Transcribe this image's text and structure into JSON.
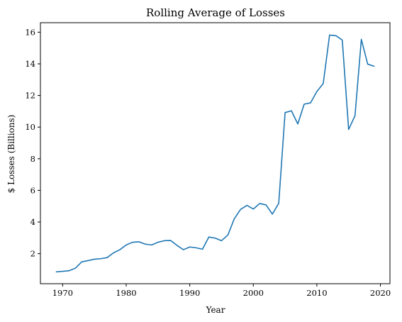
{
  "chart_data": {
    "type": "line",
    "title": "Rolling Average of Losses",
    "xlabel": "Year",
    "ylabel": "$ Losses (Billions)",
    "xlim": [
      1966.5,
      2021.5
    ],
    "ylim": [
      0.1,
      16.6
    ],
    "xticks": [
      1970,
      1980,
      1990,
      2000,
      2010,
      2020
    ],
    "yticks": [
      2,
      4,
      6,
      8,
      10,
      12,
      14,
      16
    ],
    "grid": false,
    "line_color": "#1f77b4",
    "series": [
      {
        "x": [
          1969,
          1970,
          1971,
          1972,
          1973,
          1974,
          1975,
          1976,
          1977,
          1978,
          1979,
          1980,
          1981,
          1982,
          1983,
          1984,
          1985,
          1986,
          1987,
          1988,
          1989,
          1990,
          1991,
          1992,
          1993,
          1994,
          1995,
          1996,
          1997,
          1998,
          1999,
          2000,
          2001,
          2002,
          2003,
          2004,
          2005,
          2006,
          2007,
          2008,
          2009,
          2010,
          2011,
          2012,
          2013,
          2014,
          2015,
          2016,
          2017,
          2018,
          2019
        ],
        "values": [
          0.85,
          0.88,
          0.92,
          1.08,
          1.48,
          1.56,
          1.65,
          1.68,
          1.75,
          2.05,
          2.25,
          2.55,
          2.72,
          2.75,
          2.6,
          2.55,
          2.72,
          2.82,
          2.83,
          2.52,
          2.25,
          2.42,
          2.37,
          2.28,
          3.05,
          2.98,
          2.82,
          3.18,
          4.2,
          4.8,
          5.05,
          4.82,
          5.17,
          5.08,
          4.5,
          5.18,
          10.92,
          11.03,
          10.2,
          11.45,
          11.53,
          12.25,
          12.75,
          15.82,
          15.78,
          15.5,
          9.85,
          10.72,
          15.55,
          13.98,
          13.85
        ]
      }
    ]
  }
}
